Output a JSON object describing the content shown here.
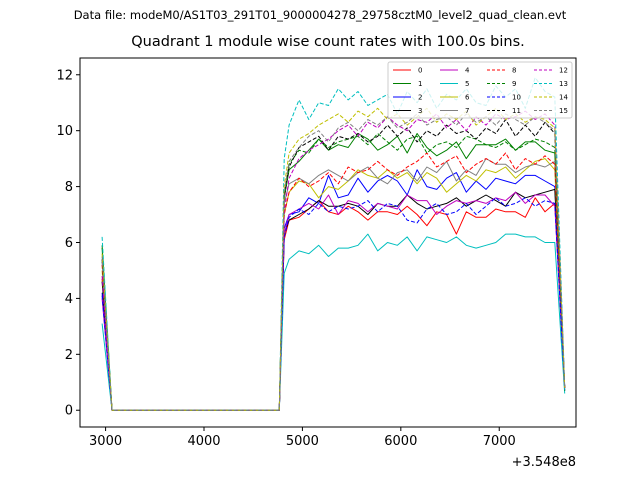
{
  "suptitle": "Data file: modeM0/AS1T03_291T01_9000004278_29758cztM0_level2_quad_clean.evt",
  "chart_data": {
    "type": "line",
    "title": "Quadrant 1 module wise count rates with 100.0s bins.",
    "xlabel": "",
    "ylabel": "",
    "x_offset_label": "+3.548e8",
    "xlim": [
      2740,
      7780
    ],
    "ylim": [
      -0.6,
      12.6
    ],
    "x_ticks": [
      3000,
      4000,
      5000,
      6000,
      7000
    ],
    "x_tick_labels": [
      "3000",
      "4000",
      "5000",
      "6000",
      "7000"
    ],
    "y_ticks": [
      0,
      2,
      4,
      6,
      8,
      10,
      12
    ],
    "y_tick_labels": [
      "0",
      "2",
      "4",
      "6",
      "8",
      "10",
      "12"
    ],
    "grid": false,
    "legend_placement": "top-right",
    "x": [
      2965,
      3065,
      3165,
      3265,
      3365,
      3465,
      3565,
      3665,
      3765,
      3865,
      3965,
      4065,
      4165,
      4265,
      4365,
      4465,
      4565,
      4665,
      4765,
      4815,
      4865,
      4965,
      5065,
      5165,
      5265,
      5365,
      5465,
      5565,
      5665,
      5765,
      5865,
      5965,
      6065,
      6165,
      6265,
      6365,
      6465,
      6565,
      6665,
      6765,
      6865,
      6965,
      7065,
      7165,
      7265,
      7365,
      7465,
      7565,
      7665
    ],
    "series": [
      {
        "name": "0",
        "color": "#ff0000",
        "style": "solid",
        "values": [
          4.7,
          0,
          0,
          0,
          0,
          0,
          0,
          0,
          0,
          0,
          0,
          0,
          0,
          0,
          0,
          0,
          0,
          0,
          0,
          6.1,
          6.8,
          6.9,
          7.2,
          7.5,
          7.1,
          7.0,
          7.3,
          7.1,
          6.8,
          7.1,
          7.1,
          7.0,
          7.3,
          7.0,
          6.6,
          7.1,
          7.0,
          6.3,
          7.1,
          6.9,
          6.9,
          7.2,
          7.1,
          7.1,
          6.9,
          7.6,
          7.1,
          7.4,
          0.8
        ]
      },
      {
        "name": "1",
        "color": "#008000",
        "style": "solid",
        "values": [
          5.8,
          0,
          0,
          0,
          0,
          0,
          0,
          0,
          0,
          0,
          0,
          0,
          0,
          0,
          0,
          0,
          0,
          0,
          0,
          7.6,
          8.6,
          8.9,
          9.3,
          9.7,
          9.3,
          9.5,
          9.4,
          9.9,
          9.7,
          9.3,
          9.5,
          9.8,
          9.2,
          9.9,
          9.4,
          9.1,
          9.3,
          9.6,
          9.0,
          9.5,
          9.5,
          9.5,
          9.7,
          9.3,
          9.6,
          9.6,
          9.3,
          9.2,
          0.7
        ]
      },
      {
        "name": "2",
        "color": "#0000ff",
        "style": "solid",
        "values": [
          4.2,
          0,
          0,
          0,
          0,
          0,
          0,
          0,
          0,
          0,
          0,
          0,
          0,
          0,
          0,
          0,
          0,
          0,
          0,
          6.5,
          7.0,
          7.1,
          7.6,
          7.4,
          8.4,
          7.6,
          7.7,
          8.3,
          7.8,
          8.2,
          8.4,
          8.2,
          7.7,
          8.6,
          8.0,
          7.9,
          8.3,
          8.5,
          7.8,
          8.2,
          7.9,
          8.3,
          8.2,
          8.1,
          8.4,
          8.4,
          8.2,
          8.0,
          0.7
        ]
      },
      {
        "name": "3",
        "color": "#000000",
        "style": "solid",
        "values": [
          4.6,
          0,
          0,
          0,
          0,
          0,
          0,
          0,
          0,
          0,
          0,
          0,
          0,
          0,
          0,
          0,
          0,
          0,
          0,
          6.3,
          6.8,
          7.0,
          7.2,
          7.5,
          7.3,
          7.3,
          7.4,
          7.3,
          7.0,
          7.4,
          7.3,
          7.3,
          7.7,
          7.4,
          7.2,
          7.3,
          7.4,
          7.6,
          7.3,
          7.5,
          7.7,
          7.5,
          7.3,
          7.8,
          7.6,
          7.7,
          7.8,
          7.9,
          0.8
        ]
      },
      {
        "name": "4",
        "color": "#bf00bf",
        "style": "solid",
        "values": [
          4.0,
          0,
          0,
          0,
          0,
          0,
          0,
          0,
          0,
          0,
          0,
          0,
          0,
          0,
          0,
          0,
          0,
          0,
          0,
          6.3,
          7.0,
          7.2,
          7.4,
          7.2,
          7.7,
          7.0,
          7.5,
          7.4,
          7.1,
          7.4,
          7.3,
          7.2,
          7.7,
          7.5,
          7.5,
          7.0,
          7.3,
          7.5,
          7.4,
          7.5,
          7.4,
          7.6,
          7.5,
          7.8,
          7.4,
          7.7,
          7.7,
          7.3,
          0.8
        ]
      },
      {
        "name": "5",
        "color": "#00bfbf",
        "style": "solid",
        "values": [
          3.1,
          0,
          0,
          0,
          0,
          0,
          0,
          0,
          0,
          0,
          0,
          0,
          0,
          0,
          0,
          0,
          0,
          0,
          0,
          4.9,
          5.4,
          5.7,
          5.6,
          5.9,
          5.5,
          5.8,
          5.8,
          5.9,
          6.3,
          5.7,
          6.0,
          5.9,
          6.2,
          5.7,
          6.2,
          6.1,
          6.0,
          6.2,
          5.9,
          5.8,
          5.9,
          6.0,
          6.3,
          6.3,
          6.2,
          6.2,
          6.0,
          6.0,
          0.6
        ]
      },
      {
        "name": "6",
        "color": "#bfbf00",
        "style": "solid",
        "values": [
          5.0,
          0,
          0,
          0,
          0,
          0,
          0,
          0,
          0,
          0,
          0,
          0,
          0,
          0,
          0,
          0,
          0,
          0,
          0,
          7.0,
          7.8,
          8.2,
          8.1,
          7.6,
          8.0,
          7.9,
          8.2,
          8.6,
          8.4,
          8.3,
          8.6,
          8.3,
          8.5,
          8.1,
          8.5,
          8.3,
          7.8,
          8.1,
          8.4,
          8.2,
          8.6,
          8.5,
          8.7,
          8.3,
          8.6,
          8.9,
          9.0,
          8.6,
          0.8
        ]
      },
      {
        "name": "7",
        "color": "#808080",
        "style": "solid",
        "values": [
          5.3,
          0,
          0,
          0,
          0,
          0,
          0,
          0,
          0,
          0,
          0,
          0,
          0,
          0,
          0,
          0,
          0,
          0,
          0,
          7.4,
          8.1,
          8.3,
          8.1,
          8.4,
          8.6,
          8.4,
          8.2,
          8.5,
          8.7,
          8.3,
          8.1,
          8.5,
          8.6,
          8.2,
          8.7,
          8.5,
          8.9,
          8.2,
          8.6,
          8.4,
          9.0,
          8.8,
          8.8,
          8.5,
          8.7,
          8.8,
          8.7,
          8.9,
          0.8
        ]
      },
      {
        "name": "8",
        "color": "#ff0000",
        "style": "dashed",
        "values": [
          5.2,
          0,
          0,
          0,
          0,
          0,
          0,
          0,
          0,
          0,
          0,
          0,
          0,
          0,
          0,
          0,
          0,
          0,
          0,
          7.0,
          7.8,
          8.3,
          8.0,
          8.2,
          8.5,
          8.1,
          8.7,
          8.5,
          8.6,
          8.9,
          8.6,
          8.4,
          8.7,
          8.9,
          9.2,
          8.7,
          8.9,
          9.1,
          8.5,
          8.8,
          9.0,
          8.8,
          9.2,
          8.6,
          9.0,
          8.8,
          9.1,
          8.8,
          0.8
        ]
      },
      {
        "name": "9",
        "color": "#008000",
        "style": "dashed",
        "values": [
          5.9,
          0,
          0,
          0,
          0,
          0,
          0,
          0,
          0,
          0,
          0,
          0,
          0,
          0,
          0,
          0,
          0,
          0,
          0,
          7.7,
          8.8,
          9.3,
          9.2,
          9.7,
          9.4,
          9.6,
          9.7,
          9.8,
          9.5,
          9.9,
          9.6,
          9.3,
          9.7,
          9.8,
          9.2,
          9.5,
          9.6,
          9.4,
          9.8,
          9.7,
          9.5,
          9.4,
          9.6,
          9.3,
          9.5,
          9.7,
          9.6,
          9.4,
          0.7
        ]
      },
      {
        "name": "10",
        "color": "#0000ff",
        "style": "dashed",
        "values": [
          4.1,
          0,
          0,
          0,
          0,
          0,
          0,
          0,
          0,
          0,
          0,
          0,
          0,
          0,
          0,
          0,
          0,
          0,
          0,
          6.2,
          6.9,
          7.2,
          7.0,
          7.4,
          7.1,
          7.3,
          7.2,
          7.3,
          7.5,
          7.1,
          7.4,
          7.3,
          6.8,
          6.7,
          7.2,
          7.4,
          7.0,
          7.1,
          7.4,
          7.0,
          7.3,
          7.6,
          7.3,
          7.4,
          7.6,
          7.3,
          7.5,
          7.4,
          0.8
        ]
      },
      {
        "name": "11",
        "color": "#000000",
        "style": "dashed",
        "values": [
          5.4,
          0,
          0,
          0,
          0,
          0,
          0,
          0,
          0,
          0,
          0,
          0,
          0,
          0,
          0,
          0,
          0,
          0,
          0,
          7.6,
          8.7,
          9.4,
          9.6,
          9.8,
          9.3,
          9.8,
          9.7,
          9.9,
          9.6,
          9.8,
          10.2,
          9.8,
          10.1,
          9.6,
          10.0,
          9.8,
          10.2,
          9.9,
          10.0,
          9.7,
          10.1,
          9.9,
          10.4,
          9.8,
          10.2,
          9.8,
          10.3,
          9.9,
          0.8
        ]
      },
      {
        "name": "12",
        "color": "#bf00bf",
        "style": "dashed",
        "values": [
          4.8,
          0,
          0,
          0,
          0,
          0,
          0,
          0,
          0,
          0,
          0,
          0,
          0,
          0,
          0,
          0,
          0,
          0,
          0,
          7.1,
          8.3,
          9.0,
          9.3,
          9.5,
          9.7,
          10.0,
          10.2,
          9.8,
          10.3,
          10.1,
          10.5,
          10.2,
          10.0,
          10.4,
          10.3,
          10.6,
          10.1,
          10.4,
          10.0,
          10.5,
          10.2,
          10.6,
          10.4,
          10.5,
          10.7,
          10.4,
          10.6,
          10.2,
          0.8
        ]
      },
      {
        "name": "13",
        "color": "#00bfbf",
        "style": "dashed",
        "values": [
          6.2,
          0,
          0,
          0,
          0,
          0,
          0,
          0,
          0,
          0,
          0,
          0,
          0,
          0,
          0,
          0,
          0,
          0,
          0,
          9.0,
          10.2,
          11.1,
          10.4,
          11.0,
          10.9,
          11.5,
          11.1,
          11.4,
          10.9,
          11.1,
          11.3,
          10.6,
          11.4,
          11.0,
          11.5,
          10.8,
          11.3,
          11.1,
          11.5,
          11.0,
          10.9,
          11.6,
          11.2,
          11.5,
          10.8,
          11.9,
          11.4,
          11.2,
          0.8
        ]
      },
      {
        "name": "14",
        "color": "#bfbf00",
        "style": "dashed",
        "values": [
          5.6,
          0,
          0,
          0,
          0,
          0,
          0,
          0,
          0,
          0,
          0,
          0,
          0,
          0,
          0,
          0,
          0,
          0,
          0,
          8.0,
          9.2,
          9.7,
          9.9,
          10.2,
          10.4,
          10.6,
          10.3,
          10.7,
          10.5,
          10.8,
          10.4,
          10.6,
          10.2,
          10.5,
          10.8,
          10.3,
          10.6,
          10.4,
          10.7,
          10.2,
          10.5,
          10.8,
          10.4,
          10.6,
          10.3,
          10.5,
          10.4,
          10.1,
          0.8
        ]
      },
      {
        "name": "15",
        "color": "#808080",
        "style": "dashed",
        "values": [
          5.5,
          0,
          0,
          0,
          0,
          0,
          0,
          0,
          0,
          0,
          0,
          0,
          0,
          0,
          0,
          0,
          0,
          0,
          0,
          7.8,
          8.9,
          9.4,
          9.8,
          10.0,
          9.6,
          10.1,
          10.3,
          10.0,
          10.4,
          10.2,
          10.5,
          10.1,
          10.3,
          10.6,
          10.2,
          10.4,
          10.5,
          10.2,
          10.6,
          10.3,
          10.5,
          10.2,
          10.6,
          10.4,
          10.2,
          10.5,
          10.3,
          10.0,
          0.8
        ]
      }
    ]
  }
}
